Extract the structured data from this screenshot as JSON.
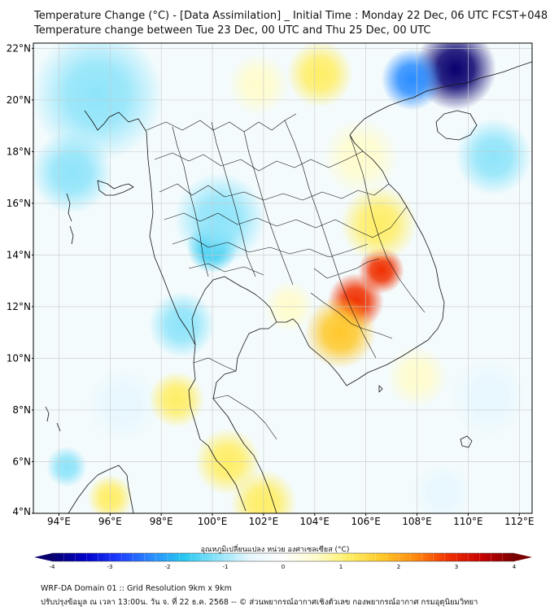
{
  "header": {
    "title_line1": "Temperature Change (°C) - [Data Assimilation] _ Initial Time : Monday 22 Dec, 06 UTC FCST+048",
    "title_line2": "Temperature change between Tue 23 Dec, 00 UTC and Thu 25 Dec, 00 UTC"
  },
  "map": {
    "lat_labels": [
      "22°N",
      "20°N",
      "18°N",
      "16°N",
      "14°N",
      "12°N",
      "10°N",
      "8°N",
      "6°N",
      "4°N"
    ],
    "lat_values": [
      22,
      20,
      18,
      16,
      14,
      12,
      10,
      8,
      6,
      4
    ],
    "lon_labels": [
      "94°E",
      "96°E",
      "98°E",
      "100°E",
      "102°E",
      "104°E",
      "106°E",
      "108°E",
      "110°E",
      "112°E"
    ],
    "lon_values": [
      94,
      96,
      98,
      100,
      102,
      104,
      106,
      108,
      110,
      112
    ],
    "extent": {
      "lon_min": 93,
      "lon_max": 112.5,
      "lat_min": 4,
      "lat_max": 22.2
    },
    "temperature_anomalies": [
      {
        "lon": 109.5,
        "lat": 21.2,
        "value": -4.0,
        "spread": 1.6
      },
      {
        "lon": 107.8,
        "lat": 20.8,
        "value": -2.2,
        "spread": 1.2
      },
      {
        "lon": 95.5,
        "lat": 20.2,
        "value": -1.3,
        "spread": 2.6
      },
      {
        "lon": 94.5,
        "lat": 17.2,
        "value": -1.0,
        "spread": 1.6
      },
      {
        "lon": 100.0,
        "lat": 14.3,
        "value": -2.0,
        "spread": 1.0
      },
      {
        "lon": 100.3,
        "lat": 15.4,
        "value": -1.1,
        "spread": 1.8
      },
      {
        "lon": 98.8,
        "lat": 11.3,
        "value": -1.0,
        "spread": 1.3
      },
      {
        "lon": 96.5,
        "lat": 8.2,
        "value": -0.7,
        "spread": 1.5
      },
      {
        "lon": 94.3,
        "lat": 5.8,
        "value": -1.0,
        "spread": 0.8
      },
      {
        "lon": 111.0,
        "lat": 17.8,
        "value": -0.9,
        "spread": 1.5
      },
      {
        "lon": 110.8,
        "lat": 8.5,
        "value": -0.8,
        "spread": 1.6
      },
      {
        "lon": 109.0,
        "lat": 4.8,
        "value": -0.6,
        "spread": 1.2
      },
      {
        "lon": 105.6,
        "lat": 12.2,
        "value": 2.8,
        "spread": 1.1
      },
      {
        "lon": 106.6,
        "lat": 13.4,
        "value": 2.6,
        "spread": 0.9
      },
      {
        "lon": 105.0,
        "lat": 11.0,
        "value": 1.6,
        "spread": 1.4
      },
      {
        "lon": 106.5,
        "lat": 15.2,
        "value": 1.2,
        "spread": 1.5
      },
      {
        "lon": 105.8,
        "lat": 17.8,
        "value": 0.8,
        "spread": 1.5
      },
      {
        "lon": 104.2,
        "lat": 21.0,
        "value": 0.9,
        "spread": 1.3
      },
      {
        "lon": 101.8,
        "lat": 20.6,
        "value": 0.6,
        "spread": 1.2
      },
      {
        "lon": 100.6,
        "lat": 6.0,
        "value": 1.3,
        "spread": 1.3
      },
      {
        "lon": 102.0,
        "lat": 4.4,
        "value": 1.2,
        "spread": 1.3
      },
      {
        "lon": 98.6,
        "lat": 8.4,
        "value": 1.0,
        "spread": 1.1
      },
      {
        "lon": 96.0,
        "lat": 4.6,
        "value": 1.0,
        "spread": 0.9
      },
      {
        "lon": 108.0,
        "lat": 9.3,
        "value": 0.7,
        "spread": 1.2
      },
      {
        "lon": 103.0,
        "lat": 12.0,
        "value": 0.7,
        "spread": 1.0
      }
    ]
  },
  "colorbar": {
    "title": "อุณหภูมิเปลี่ยนแปลง หน่วย องศาเซลเซียส (°C)",
    "ticks": [
      "-4",
      "-3",
      "-2",
      "-1",
      "0",
      "1",
      "2",
      "3",
      "4"
    ],
    "min": -4,
    "max": 4,
    "stops": [
      "#08006e",
      "#0000c8",
      "#1e3cff",
      "#2a8cff",
      "#28c8f0",
      "#8ee4fa",
      "#e8f8fe",
      "#ffffff",
      "#fffccc",
      "#ffee66",
      "#ffc82a",
      "#ff8a10",
      "#f03000",
      "#c80000",
      "#7a0000"
    ]
  },
  "footer": {
    "line1": "WRF-DA Domain 01 :: Grid Resolution 9km x 9km",
    "line2": "ปรับปรุงข้อมูล ณ เวลา 13:00น. วัน จ. ที่ 22 ธ.ค. 2568 -- © ส่วนพยากรณ์อากาศเชิงตัวเลข กองพยากรณ์อากาศ กรมอุตุนิยมวิทยา"
  }
}
